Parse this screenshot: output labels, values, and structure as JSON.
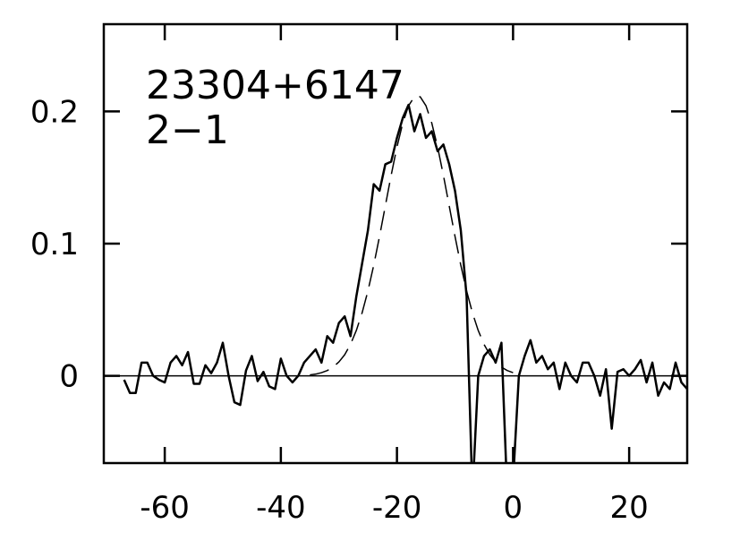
{
  "chart_data": {
    "type": "line",
    "annotations": [
      "23304+6147",
      "2−1"
    ],
    "xlim": [
      -70.5,
      30
    ],
    "ylim": [
      -0.066,
      0.266
    ],
    "xticks": [
      -60,
      -40,
      -20,
      0,
      20
    ],
    "yticks": [
      0,
      0.1,
      0.2
    ],
    "series": [
      {
        "color": "#000000",
        "style": "solid",
        "x": [
          -67,
          -66,
          -65,
          -64,
          -63,
          -62,
          -61,
          -60,
          -59,
          -58,
          -57,
          -56,
          -55,
          -54,
          -53,
          -52,
          -51,
          -50,
          -49,
          -48,
          -47,
          -46,
          -45,
          -44,
          -43,
          -42,
          -41,
          -40,
          -39,
          -38,
          -37,
          -36,
          -35,
          -34,
          -33,
          -32,
          -31,
          -30,
          -29,
          -28,
          -27,
          -26,
          -25,
          -24,
          -23,
          -22,
          -21,
          -20,
          -19,
          -18,
          -17,
          -16,
          -15,
          -14,
          -13,
          -12,
          -11,
          -10,
          -9,
          -8,
          -7,
          -6,
          -5,
          -4,
          -3,
          -2,
          -1,
          0,
          1,
          2,
          3,
          4,
          5,
          6,
          7,
          8,
          9,
          10,
          11,
          12,
          13,
          14,
          15,
          16,
          17,
          18,
          19,
          20,
          21,
          22,
          23,
          24,
          25,
          26,
          27,
          28,
          29,
          30
        ],
        "values": [
          -0.003,
          -0.013,
          -0.013,
          0.01,
          0.01,
          0.0,
          -0.003,
          -0.005,
          0.01,
          0.015,
          0.008,
          0.018,
          -0.006,
          -0.006,
          0.008,
          0.002,
          0.01,
          0.025,
          0.0,
          -0.02,
          -0.022,
          0.004,
          0.015,
          -0.004,
          0.003,
          -0.008,
          -0.01,
          0.013,
          0.0,
          -0.005,
          0.0,
          0.01,
          0.015,
          0.02,
          0.01,
          0.03,
          0.025,
          0.04,
          0.045,
          0.03,
          0.06,
          0.085,
          0.11,
          0.145,
          0.14,
          0.16,
          0.162,
          0.18,
          0.195,
          0.205,
          0.185,
          0.198,
          0.18,
          0.185,
          0.17,
          0.175,
          0.16,
          0.14,
          0.11,
          0.06,
          -0.09,
          0.0,
          0.015,
          0.02,
          0.01,
          0.025,
          -0.09,
          -0.08,
          0.0,
          0.015,
          0.027,
          0.01,
          0.015,
          0.005,
          0.01,
          -0.01,
          0.01,
          0.0,
          -0.005,
          0.01,
          0.01,
          0.0,
          -0.015,
          0.005,
          -0.04,
          0.003,
          0.005,
          0.0,
          0.005,
          0.012,
          -0.005,
          0.01,
          -0.015,
          -0.005,
          -0.01,
          0.01,
          -0.005,
          -0.01
        ]
      },
      {
        "color": "#000000",
        "style": "dashed",
        "x": [
          -35,
          -34,
          -33,
          -32,
          -31,
          -30,
          -29,
          -28,
          -27,
          -26,
          -25,
          -24,
          -23,
          -22,
          -21,
          -20,
          -19,
          -18,
          -17,
          -16,
          -15,
          -14,
          -13,
          -12,
          -11,
          -10,
          -9,
          -8,
          -7,
          -6,
          -5,
          -4,
          -3,
          -2,
          -1,
          0
        ],
        "values": [
          0.0007,
          0.0013,
          0.0024,
          0.004,
          0.0066,
          0.0105,
          0.016,
          0.0238,
          0.0343,
          0.0477,
          0.0642,
          0.0837,
          0.1055,
          0.1286,
          0.1517,
          0.1731,
          0.1912,
          0.2043,
          0.2111,
          0.2111,
          0.2043,
          0.1912,
          0.1731,
          0.1517,
          0.1286,
          0.1055,
          0.0837,
          0.0642,
          0.0477,
          0.0343,
          0.0238,
          0.016,
          0.0105,
          0.0066,
          0.004,
          0.0024
        ]
      }
    ]
  }
}
